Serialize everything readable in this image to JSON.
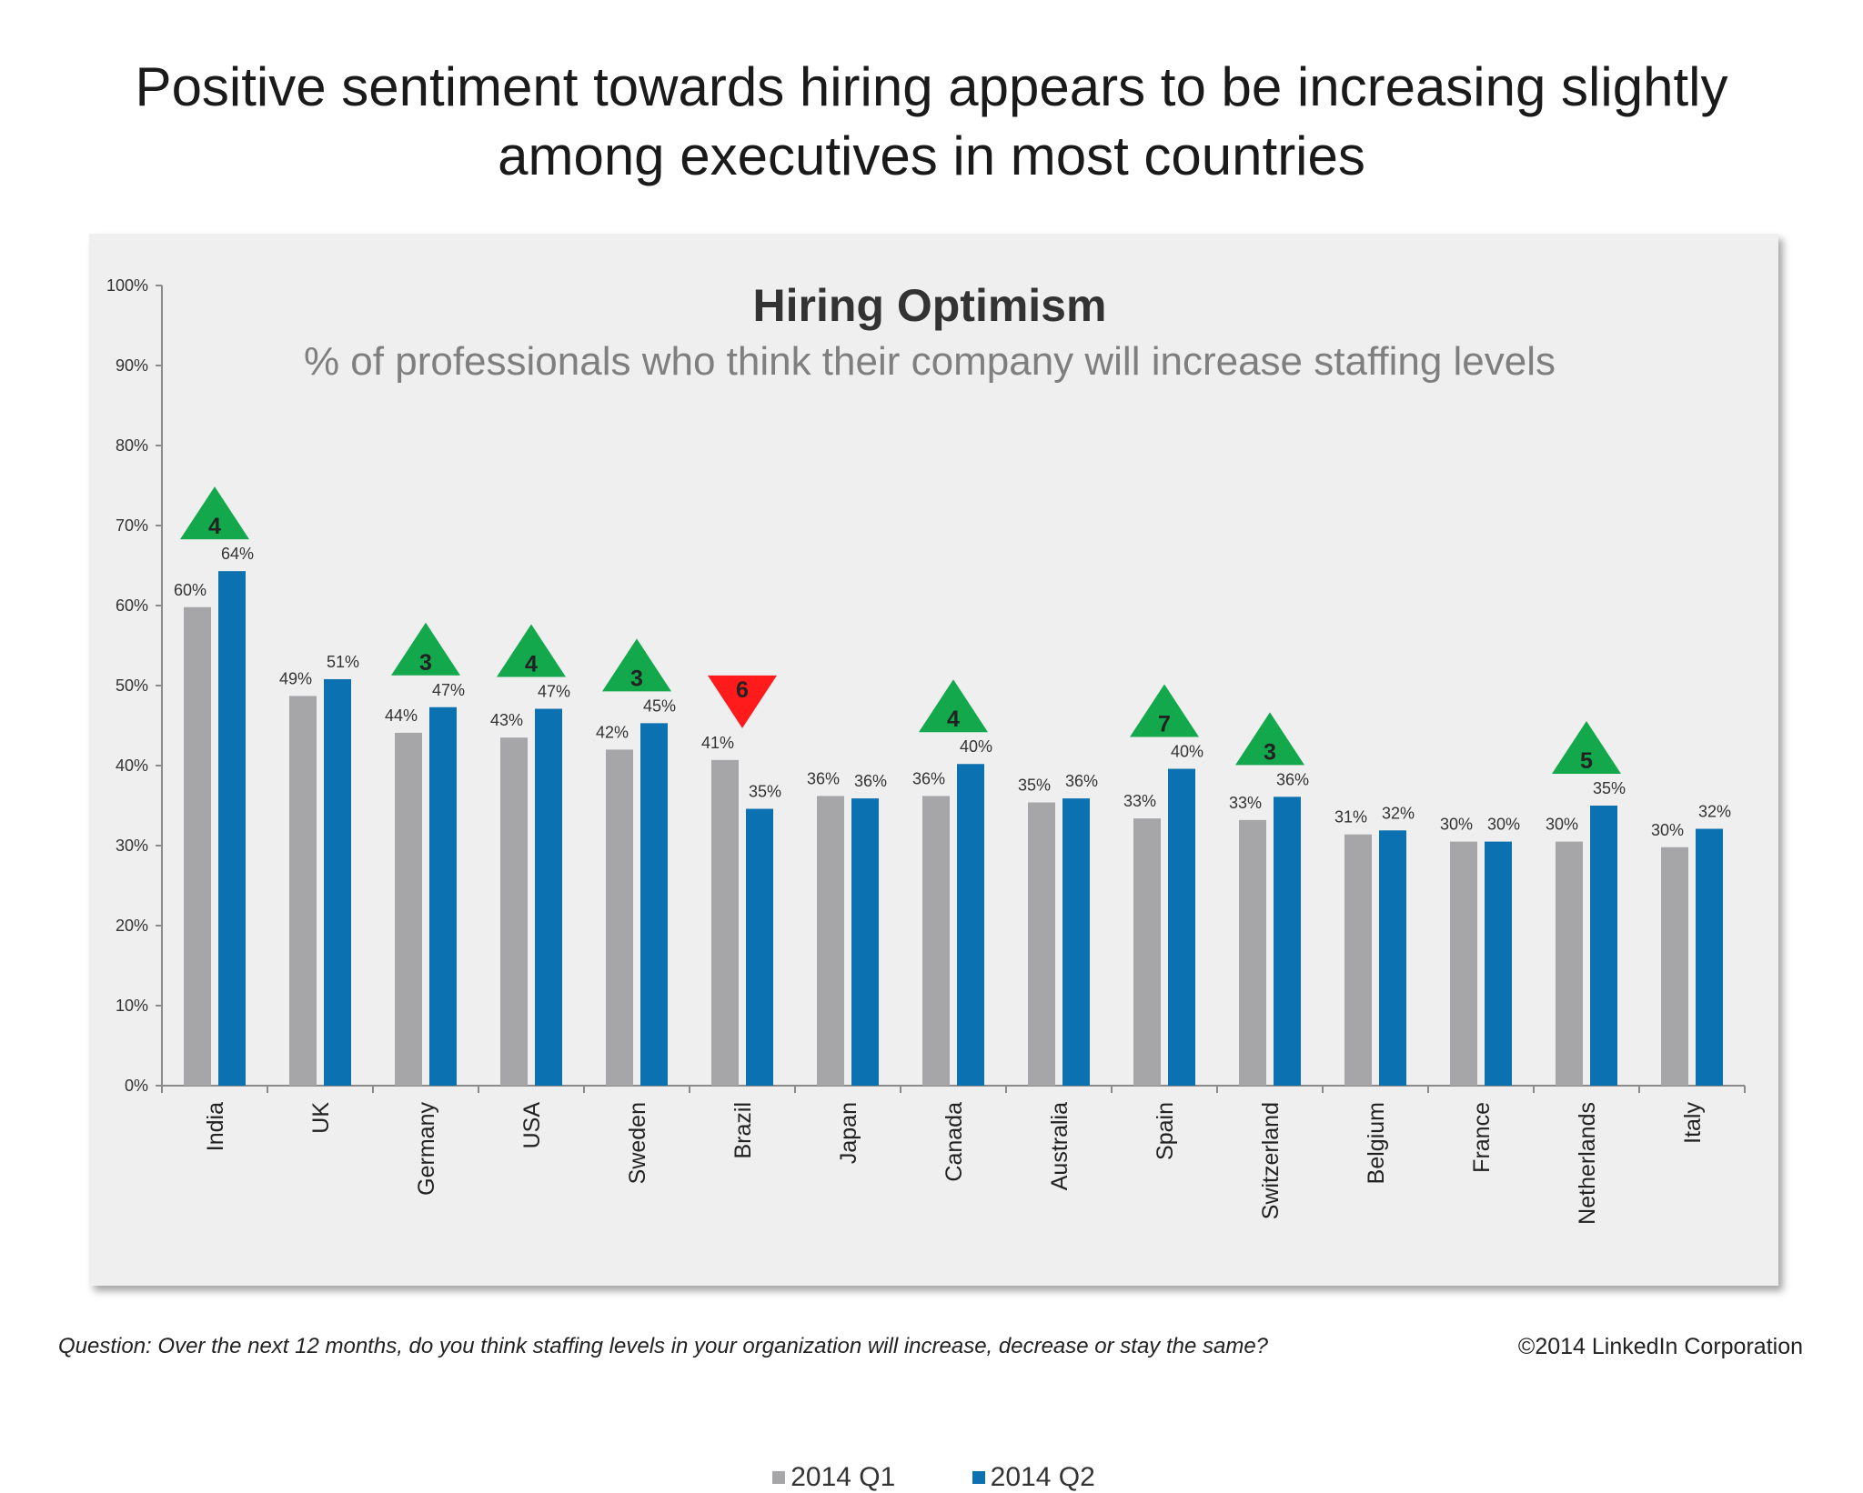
{
  "slide_title_line1": "Positive sentiment towards hiring appears to be increasing slightly",
  "slide_title_line2": "among executives in most countries",
  "footer": {
    "question": "Question: Over the next 12 months, do you think staffing levels in your organization will increase, decrease or stay the same?",
    "copyright": "©2014 LinkedIn Corporation"
  },
  "colors": {
    "q1": "#a6a5a8",
    "q2": "#0c71b0",
    "up": "#13a84c",
    "down": "#ff1b1b",
    "panel": "#efefef"
  },
  "chart_data": {
    "type": "bar",
    "title": "Hiring Optimism",
    "subtitle": "% of professionals who think their company will increase staffing levels",
    "categories": [
      "India",
      "UK",
      "Germany",
      "USA",
      "Sweden",
      "Brazil",
      "Japan",
      "Canada",
      "Australia",
      "Spain",
      "Switzerland",
      "Belgium",
      "France",
      "Netherlands",
      "Italy"
    ],
    "series": [
      {
        "name": "2014 Q1",
        "values": [
          60,
          49,
          44,
          43,
          42,
          41,
          36,
          36,
          35,
          33,
          33,
          31,
          30,
          30,
          30
        ],
        "plotted": [
          59.8,
          48.7,
          44.1,
          43.5,
          42.0,
          40.7,
          36.2,
          36.2,
          35.4,
          33.4,
          33.2,
          31.4,
          30.5,
          30.5,
          29.8
        ]
      },
      {
        "name": "2014 Q2",
        "values": [
          64,
          51,
          47,
          47,
          45,
          35,
          36,
          40,
          36,
          40,
          36,
          32,
          30,
          35,
          32
        ],
        "plotted": [
          64.3,
          50.8,
          47.3,
          47.1,
          45.3,
          34.6,
          35.9,
          40.2,
          35.9,
          39.6,
          36.1,
          31.9,
          30.5,
          35.0,
          32.1
        ]
      }
    ],
    "changes": [
      {
        "category": "India",
        "direction": "up",
        "label": "4"
      },
      {
        "category": "Germany",
        "direction": "up",
        "label": "3"
      },
      {
        "category": "USA",
        "direction": "up",
        "label": "4"
      },
      {
        "category": "Sweden",
        "direction": "up",
        "label": "3"
      },
      {
        "category": "Brazil",
        "direction": "down",
        "label": "6"
      },
      {
        "category": "Canada",
        "direction": "up",
        "label": "4"
      },
      {
        "category": "Spain",
        "direction": "up",
        "label": "7"
      },
      {
        "category": "Switzerland",
        "direction": "up",
        "label": "3"
      },
      {
        "category": "Netherlands",
        "direction": "up",
        "label": "5"
      }
    ],
    "yticks": [
      "0%",
      "10%",
      "20%",
      "30%",
      "40%",
      "50%",
      "60%",
      "70%",
      "80%",
      "90%",
      "100%"
    ],
    "ylim": [
      0,
      100
    ],
    "legend": "bottom"
  }
}
